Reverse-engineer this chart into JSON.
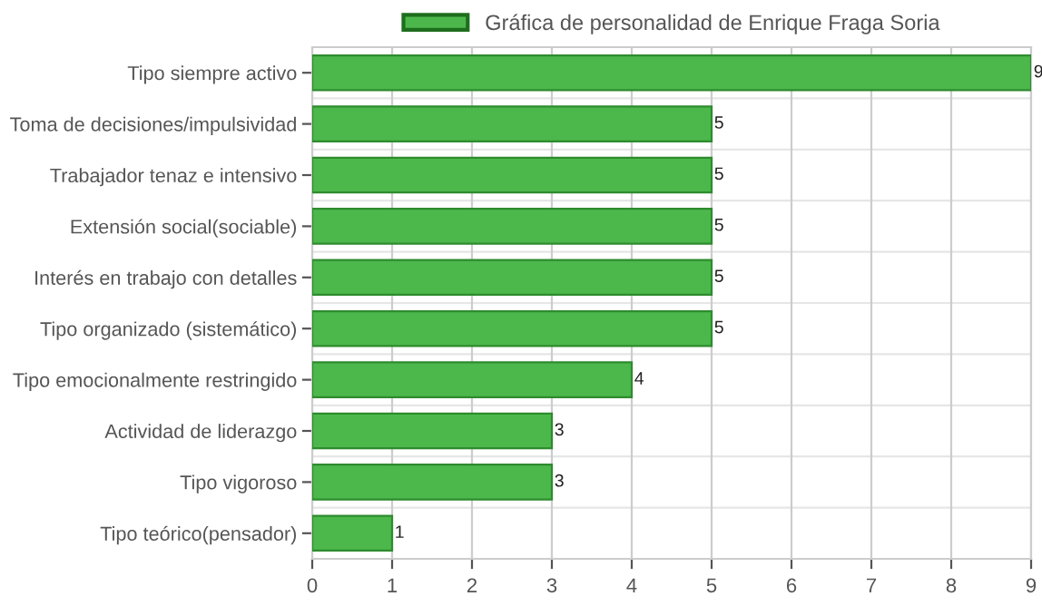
{
  "chart_data": {
    "type": "bar",
    "orientation": "horizontal",
    "categories": [
      "Tipo siempre activo",
      "Toma de decisiones/impulsividad",
      "Trabajador tenaz e intensivo",
      "Extensión social(sociable)",
      "Interés en trabajo con detalles",
      "Tipo organizado (sistemático)",
      "Tipo emocionalmente restringido",
      "Actividad de liderazgo",
      "Tipo vigoroso",
      "Tipo teórico(pensador)"
    ],
    "series": [
      {
        "name": "Gráfica de personalidad de Enrique Fraga Soria",
        "color": "#4cb84c",
        "values": [
          9,
          5,
          5,
          5,
          5,
          5,
          4,
          3,
          3,
          1
        ]
      }
    ],
    "xlim": [
      0,
      9
    ],
    "xticks": [
      0,
      1,
      2,
      3,
      4,
      5,
      6,
      7,
      8,
      9
    ],
    "grid": true,
    "legend": "top",
    "data_labels": true
  }
}
